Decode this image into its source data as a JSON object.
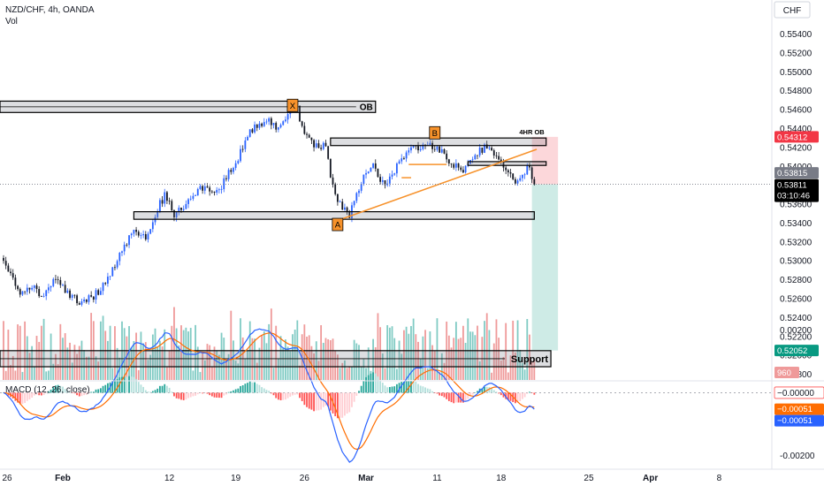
{
  "header": {
    "symbol": "NZD/CHF, 4h, OANDA",
    "volume_label": "Vol",
    "currency": "CHF"
  },
  "colors": {
    "up": "#2962ff",
    "down": "#131722",
    "vol_up": "#80cbc4",
    "vol_down": "#ef9a9a",
    "macd_line": "#2962ff",
    "signal_line": "#ff6d00",
    "orange": "#f7922b",
    "red_badge": "#f23645",
    "green_badge": "#089981",
    "dark_badge": "#000000",
    "grey_badge": "#787b86",
    "blue_badge": "#2962ff"
  },
  "chart_data": [
    {
      "type": "candlestick",
      "title": "NZD/CHF, 4h, OANDA",
      "price_axis": {
        "unit": "CHF",
        "range": [
          0.5174,
          0.5576
        ],
        "ticks": [
          "0.55400",
          "0.55200",
          "0.55000",
          "0.54800",
          "0.54600",
          "0.54400",
          "0.54200",
          "0.54000",
          "0.53600",
          "0.53400",
          "0.53200",
          "0.53000",
          "0.52800",
          "0.52600",
          "0.52400",
          "0.52200",
          "0.52000",
          "0.51800"
        ],
        "tick_values": [
          0.554,
          0.552,
          0.55,
          0.548,
          0.546,
          0.544,
          0.542,
          0.54,
          0.536,
          0.534,
          0.532,
          0.53,
          0.528,
          0.526,
          0.524,
          0.522,
          0.52,
          0.518
        ]
      },
      "time_axis": {
        "labels": [
          "26",
          "Feb",
          "12",
          "19",
          "26",
          "Mar",
          "11",
          "18",
          "25",
          "Apr",
          "8"
        ],
        "label_bar_index": [
          0,
          25,
          70,
          98,
          127,
          153,
          183,
          210,
          247,
          273,
          302
        ]
      },
      "price_path_anchors": [
        {
          "bar": 0,
          "price": 0.5296
        },
        {
          "bar": 3,
          "price": 0.5286
        },
        {
          "bar": 7,
          "price": 0.5266
        },
        {
          "bar": 12,
          "price": 0.5272
        },
        {
          "bar": 16,
          "price": 0.5264
        },
        {
          "bar": 21,
          "price": 0.528
        },
        {
          "bar": 26,
          "price": 0.5268
        },
        {
          "bar": 29,
          "price": 0.5262
        },
        {
          "bar": 32,
          "price": 0.5256
        },
        {
          "bar": 38,
          "price": 0.5262
        },
        {
          "bar": 43,
          "price": 0.5275
        },
        {
          "bar": 48,
          "price": 0.53
        },
        {
          "bar": 52,
          "price": 0.532
        },
        {
          "bar": 55,
          "price": 0.533
        },
        {
          "bar": 60,
          "price": 0.5326
        },
        {
          "bar": 64,
          "price": 0.535
        },
        {
          "bar": 68,
          "price": 0.537
        },
        {
          "bar": 72,
          "price": 0.535
        },
        {
          "bar": 77,
          "price": 0.536
        },
        {
          "bar": 83,
          "price": 0.538
        },
        {
          "bar": 88,
          "price": 0.5372
        },
        {
          "bar": 92,
          "price": 0.538
        },
        {
          "bar": 97,
          "price": 0.54
        },
        {
          "bar": 101,
          "price": 0.542
        },
        {
          "bar": 105,
          "price": 0.544
        },
        {
          "bar": 108,
          "price": 0.5445
        },
        {
          "bar": 112,
          "price": 0.5448
        },
        {
          "bar": 116,
          "price": 0.544
        },
        {
          "bar": 120,
          "price": 0.5455
        },
        {
          "bar": 124,
          "price": 0.5464
        },
        {
          "bar": 126,
          "price": 0.544
        },
        {
          "bar": 129,
          "price": 0.5428
        },
        {
          "bar": 133,
          "price": 0.542
        },
        {
          "bar": 136,
          "price": 0.5425
        },
        {
          "bar": 138,
          "price": 0.5392
        },
        {
          "bar": 140,
          "price": 0.537
        },
        {
          "bar": 143,
          "price": 0.5355
        },
        {
          "bar": 146,
          "price": 0.5348
        },
        {
          "bar": 148,
          "price": 0.5365
        },
        {
          "bar": 152,
          "price": 0.539
        },
        {
          "bar": 156,
          "price": 0.54
        },
        {
          "bar": 159,
          "price": 0.5385
        },
        {
          "bar": 162,
          "price": 0.538
        },
        {
          "bar": 166,
          "price": 0.54
        },
        {
          "bar": 170,
          "price": 0.5412
        },
        {
          "bar": 174,
          "price": 0.542
        },
        {
          "bar": 178,
          "price": 0.5425
        },
        {
          "bar": 182,
          "price": 0.5418
        },
        {
          "bar": 186,
          "price": 0.5413
        },
        {
          "bar": 189,
          "price": 0.5403
        },
        {
          "bar": 193,
          "price": 0.5395
        },
        {
          "bar": 197,
          "price": 0.5403
        },
        {
          "bar": 201,
          "price": 0.5418
        },
        {
          "bar": 205,
          "price": 0.5421
        },
        {
          "bar": 209,
          "price": 0.5405
        },
        {
          "bar": 212,
          "price": 0.5395
        },
        {
          "bar": 215,
          "price": 0.5385
        },
        {
          "bar": 219,
          "price": 0.539
        },
        {
          "bar": 222,
          "price": 0.54
        },
        {
          "bar": 224,
          "price": 0.5381
        }
      ],
      "annotations": {
        "zones": [
          {
            "label": "OB",
            "start_bar": -3,
            "end_bar": 157,
            "top": 0.5469,
            "bottom": 0.5457
          },
          {
            "label": "4HR OB",
            "start_bar": 138,
            "end_bar": 229,
            "top": 0.543,
            "bottom": 0.5422
          },
          {
            "label": "",
            "start_bar": 55,
            "end_bar": 224,
            "top": 0.5352,
            "bottom": 0.5344
          },
          {
            "label": "",
            "start_bar": 196,
            "end_bar": 229,
            "top": 0.5405,
            "bottom": 0.5401
          },
          {
            "label": "Support",
            "start_bar": -3,
            "end_bar": 231,
            "top": 0.5205,
            "bottom": 0.5188
          }
        ],
        "points": [
          {
            "label": "X",
            "bar": 122,
            "price": 0.54645
          },
          {
            "label": "A",
            "bar": 141,
            "price": 0.53385
          },
          {
            "label": "B",
            "bar": 182,
            "price": 0.54355
          }
        ],
        "trendline": {
          "start_bar": 143,
          "start_price": 0.53445,
          "end_bar": 225,
          "end_price": 0.5418
        },
        "short_lines": [
          {
            "start_bar": 171,
            "end_bar": 187,
            "price": 0.5402
          },
          {
            "start_bar": 168,
            "end_bar": 172,
            "price": 0.5388
          }
        ],
        "position": {
          "start_bar": 223,
          "end_bar": 234,
          "entry": 0.5381,
          "stop": 0.54312,
          "target": 0.52052
        }
      },
      "price_labels": {
        "stop": "0.54312",
        "last_upper": "0.53815",
        "last_price": "0.53811",
        "countdown": "03:10:46",
        "target": "0.52052",
        "volume": "960"
      }
    },
    {
      "type": "line",
      "title": "MACD (12, 26, close)",
      "axis": {
        "range": [
          -0.00235,
          0.00035
        ],
        "ticks": [
          "0.00200",
          "-0.00200"
        ],
        "tick_values": [
          0.002,
          -0.002
        ]
      },
      "labels": {
        "hist": "−0.00000",
        "signal": "−0.00051",
        "macd": "−0.00051"
      }
    }
  ]
}
